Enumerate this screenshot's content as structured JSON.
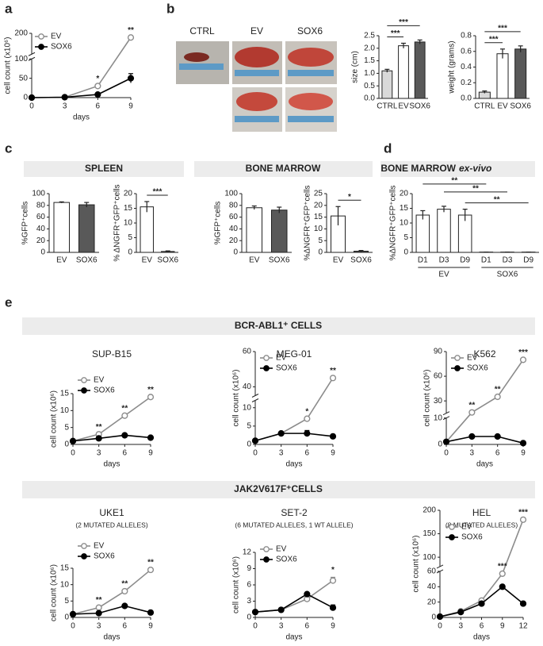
{
  "panel_labels": [
    "a",
    "b",
    "c",
    "d",
    "e"
  ],
  "photo_labels": [
    "CTRL",
    "EV",
    "SOX6"
  ],
  "section_headers": {
    "spleen": "SPLEEN",
    "bone_marrow": "BONE MARROW",
    "ex_vivo": "BONE MARROW",
    "ex_vivo_italic": "ex-vivo",
    "bcr_abl": "BCR-ABL1⁺ CELLS",
    "jak2": "JAK2V617F⁺CELLS"
  },
  "chart_data": [
    {
      "type": "line",
      "xlabel": "days",
      "ylabel": "cell count (x10⁶)",
      "x": [
        0,
        3,
        6,
        9
      ],
      "xlim": [
        0,
        9
      ],
      "xticks": [
        0,
        3,
        6,
        9
      ],
      "ylim": [
        0,
        200
      ],
      "ybreak": [
        100,
        150
      ],
      "yticks": [
        0,
        50,
        100,
        200
      ],
      "series": [
        {
          "name": "EV",
          "color": "#8c8c8c",
          "marker": "open",
          "values": [
            0,
            1,
            30,
            190
          ]
        },
        {
          "name": "SOX6",
          "color": "#000000",
          "marker": "filled",
          "values": [
            0,
            1,
            8,
            50
          ],
          "errors": [
            0,
            0.5,
            2,
            12
          ]
        }
      ],
      "annotations": [
        {
          "x": 6,
          "label": "*"
        },
        {
          "x": 9,
          "label": "**"
        }
      ]
    },
    {
      "type": "bar",
      "ylabel": "size (cm)",
      "categories": [
        "CTRL",
        "EV",
        "SOX6"
      ],
      "values": [
        1.1,
        2.1,
        2.25
      ],
      "errors": [
        0.06,
        0.1,
        0.08
      ],
      "colors": [
        "#d9d9d9",
        "#ffffff",
        "#595959"
      ],
      "ylim": [
        0,
        2.5
      ],
      "yticks": [
        {
          "value": 0,
          "label": "0.0"
        },
        0.5,
        {
          "value": 1,
          "label": "1.0"
        },
        1.5,
        {
          "value": 2,
          "label": "2.0"
        },
        2.5
      ],
      "brackets": [
        {
          "from": 0,
          "to": 1,
          "label": "***"
        },
        {
          "from": 0,
          "to": 2,
          "label": "***"
        }
      ]
    },
    {
      "type": "bar",
      "ylabel": "weight (grams)",
      "categories": [
        "CTRL",
        "EV",
        "SOX6"
      ],
      "values": [
        0.08,
        0.57,
        0.63
      ],
      "errors": [
        0.015,
        0.06,
        0.04
      ],
      "colors": [
        "#d9d9d9",
        "#ffffff",
        "#595959"
      ],
      "ylim": [
        0,
        0.8
      ],
      "yticks": [
        {
          "value": 0,
          "label": "0.0"
        },
        0.2,
        0.4,
        0.6,
        0.8
      ],
      "brackets": [
        {
          "from": 0,
          "to": 1,
          "label": "***"
        },
        {
          "from": 0,
          "to": 2,
          "label": "***"
        }
      ]
    },
    {
      "type": "bar",
      "ylabel": "%GFP⁺cells",
      "categories": [
        "EV",
        "SOX6"
      ],
      "values": [
        85,
        81
      ],
      "errors": [
        1,
        4
      ],
      "colors": [
        "#ffffff",
        "#595959"
      ],
      "ylim": [
        0,
        100
      ],
      "yticks": [
        0,
        20,
        40,
        60,
        80,
        100
      ]
    },
    {
      "type": "bar",
      "ylabel": "% ΔNGFR⁺GFP⁺cells",
      "categories": [
        "EV",
        "SOX6"
      ],
      "values": [
        15.5,
        0.3
      ],
      "errors": [
        1.8,
        0.2
      ],
      "colors": [
        "#ffffff",
        "#595959"
      ],
      "ylim": [
        0,
        20
      ],
      "yticks": [
        0,
        5,
        10,
        15,
        20
      ],
      "brackets": [
        {
          "from": 0,
          "to": 1,
          "label": "***"
        }
      ]
    },
    {
      "type": "bar",
      "ylabel": "%GFP⁺cells",
      "categories": [
        "EV",
        "SOX6"
      ],
      "values": [
        76,
        72
      ],
      "errors": [
        3,
        5
      ],
      "colors": [
        "#ffffff",
        "#595959"
      ],
      "ylim": [
        0,
        100
      ],
      "yticks": [
        0,
        20,
        40,
        60,
        80,
        100
      ]
    },
    {
      "type": "bar",
      "ylabel": "%ΔNGFR⁺GFP⁺cells",
      "categories": [
        "EV",
        "SOX6"
      ],
      "values": [
        15.5,
        0.5
      ],
      "errors": [
        4,
        0.3
      ],
      "colors": [
        "#ffffff",
        "#595959"
      ],
      "ylim": [
        0,
        25
      ],
      "yticks": [
        0,
        5,
        10,
        15,
        20,
        25
      ],
      "brackets": [
        {
          "from": 0,
          "to": 1,
          "label": "*"
        }
      ]
    },
    {
      "type": "bar",
      "ylabel": "%ΔNGFR⁺GFP⁺cells",
      "groups": [
        {
          "name": "EV",
          "categories": [
            "D1",
            "D3",
            "D9"
          ]
        },
        {
          "name": "SOX6",
          "categories": [
            "D1",
            "D3",
            "D9"
          ]
        }
      ],
      "values": [
        12.7,
        14.7,
        12.7,
        0.1,
        0.1,
        0.1
      ],
      "errors": [
        1.5,
        1,
        2,
        0,
        0,
        0
      ],
      "color": "#ffffff",
      "ylim": [
        0,
        20
      ],
      "yticks": [
        0,
        5,
        10,
        15,
        20
      ],
      "brackets": [
        {
          "from": 2,
          "to": 5,
          "label": "**"
        },
        {
          "from": 1,
          "to": 4,
          "label": "**"
        },
        {
          "from": 0,
          "to": 3,
          "label": "**"
        }
      ]
    },
    {
      "type": "line",
      "title": "SUP-B15",
      "xlabel": "days",
      "ylabel": "cell count (x10⁶)",
      "x": [
        0,
        3,
        6,
        9
      ],
      "xlim": [
        0,
        9
      ],
      "xticks": [
        0,
        3,
        6,
        9
      ],
      "ylim": [
        0,
        15
      ],
      "yticks": [
        0,
        5,
        10,
        15
      ],
      "series": [
        {
          "name": "EV",
          "color": "#8c8c8c",
          "marker": "open",
          "values": [
            1,
            3,
            8.5,
            14
          ]
        },
        {
          "name": "SOX6",
          "color": "#000000",
          "marker": "filled",
          "values": [
            1,
            1.8,
            2.7,
            2
          ]
        }
      ],
      "annotations": [
        {
          "x": 3,
          "label": "**"
        },
        {
          "x": 6,
          "label": "**"
        },
        {
          "x": 9,
          "label": "**"
        }
      ]
    },
    {
      "type": "line",
      "title": "MEG-01",
      "xlabel": "days",
      "ylabel": "cell count (x10⁶)",
      "x": [
        0,
        3,
        6,
        9
      ],
      "xlim": [
        0,
        9
      ],
      "xticks": [
        0,
        3,
        6,
        9
      ],
      "ylim": [
        0,
        60
      ],
      "ybreak": [
        12,
        35
      ],
      "yticks": [
        0,
        5,
        10,
        40,
        60
      ],
      "series": [
        {
          "name": "EV",
          "color": "#8c8c8c",
          "marker": "open",
          "values": [
            1,
            3,
            7,
            45
          ]
        },
        {
          "name": "SOX6",
          "color": "#000000",
          "marker": "filled",
          "values": [
            1,
            3,
            3,
            2.2
          ],
          "errors": [
            0,
            0.2,
            0.8,
            0.2
          ]
        }
      ],
      "annotations": [
        {
          "x": 6,
          "label": "*"
        },
        {
          "x": 9,
          "label": "**"
        }
      ]
    },
    {
      "type": "line",
      "title": "K562",
      "xlabel": "days",
      "ylabel": "cell count (x10⁶)",
      "x": [
        0,
        3,
        6,
        9
      ],
      "xlim": [
        0,
        9
      ],
      "xticks": [
        0,
        3,
        6,
        9
      ],
      "ylim": [
        0,
        90
      ],
      "ybreak": [
        10,
        15
      ],
      "yticks": [
        0,
        10,
        30,
        60,
        90
      ],
      "series": [
        {
          "name": "EV",
          "color": "#8c8c8c",
          "marker": "open",
          "values": [
            1,
            16,
            35,
            80
          ]
        },
        {
          "name": "SOX6",
          "color": "#000000",
          "marker": "filled",
          "values": [
            1,
            3,
            3,
            0.5
          ]
        }
      ],
      "annotations": [
        {
          "x": 3,
          "label": "**"
        },
        {
          "x": 6,
          "label": "**"
        },
        {
          "x": 9,
          "label": "***"
        }
      ]
    },
    {
      "type": "line",
      "title": "UKE1",
      "subtitle": "(2 MUTATED ALLELES)",
      "xlabel": "days",
      "ylabel": "cell count (x10⁶)",
      "x": [
        0,
        3,
        6,
        9
      ],
      "xlim": [
        0,
        9
      ],
      "xticks": [
        0,
        3,
        6,
        9
      ],
      "ylim": [
        0,
        15
      ],
      "yticks": [
        0,
        5,
        10,
        15
      ],
      "series": [
        {
          "name": "EV",
          "color": "#8c8c8c",
          "marker": "open",
          "values": [
            1,
            3,
            8,
            14.5
          ]
        },
        {
          "name": "SOX6",
          "color": "#000000",
          "marker": "filled",
          "values": [
            1,
            1.3,
            3.5,
            1.5
          ]
        }
      ],
      "annotations": [
        {
          "x": 3,
          "label": "**"
        },
        {
          "x": 6,
          "label": "**"
        },
        {
          "x": 9,
          "label": "**"
        }
      ]
    },
    {
      "type": "line",
      "title": "SET-2",
      "subtitle": "(6 MUTATED ALLELES, 1 WT ALLELE)",
      "xlabel": "days",
      "ylabel": "cell count (x10⁶)",
      "x": [
        0,
        3,
        6,
        9
      ],
      "xlim": [
        0,
        9
      ],
      "xticks": [
        0,
        3,
        6,
        9
      ],
      "ylim": [
        0,
        12
      ],
      "yticks": [
        0,
        3,
        6,
        9,
        12
      ],
      "series": [
        {
          "name": "EV",
          "color": "#8c8c8c",
          "marker": "open",
          "values": [
            1,
            1.4,
            3.4,
            6.8
          ],
          "errors": [
            0,
            0,
            0,
            0.6
          ]
        },
        {
          "name": "SOX6",
          "color": "#000000",
          "marker": "filled",
          "values": [
            1,
            1.4,
            4.3,
            1.8
          ],
          "errors": [
            0,
            0,
            0,
            0.5
          ]
        }
      ],
      "annotations": [
        {
          "x": 9,
          "label": "*"
        }
      ]
    },
    {
      "type": "line",
      "title": "HEL",
      "subtitle": "(8 MUTATED ALLELES)",
      "xlabel": "days",
      "ylabel": "cell count (x10⁶)",
      "x": [
        0,
        3,
        6,
        9,
        12
      ],
      "xlim": [
        0,
        12
      ],
      "xticks": [
        0,
        3,
        6,
        9,
        12
      ],
      "ylim": [
        0,
        200
      ],
      "ybreak": [
        60,
        80
      ],
      "yticks": [
        0,
        20,
        40,
        60,
        100,
        150,
        200
      ],
      "series": [
        {
          "name": "EV",
          "color": "#8c8c8c",
          "marker": "open",
          "values": [
            1,
            8,
            22,
            57,
            180
          ]
        },
        {
          "name": "SOX6",
          "color": "#000000",
          "marker": "filled",
          "values": [
            1,
            7,
            18,
            40,
            18
          ]
        }
      ],
      "annotations": [
        {
          "x": 9,
          "label": "***"
        },
        {
          "x": 12,
          "label": "***"
        }
      ]
    }
  ]
}
